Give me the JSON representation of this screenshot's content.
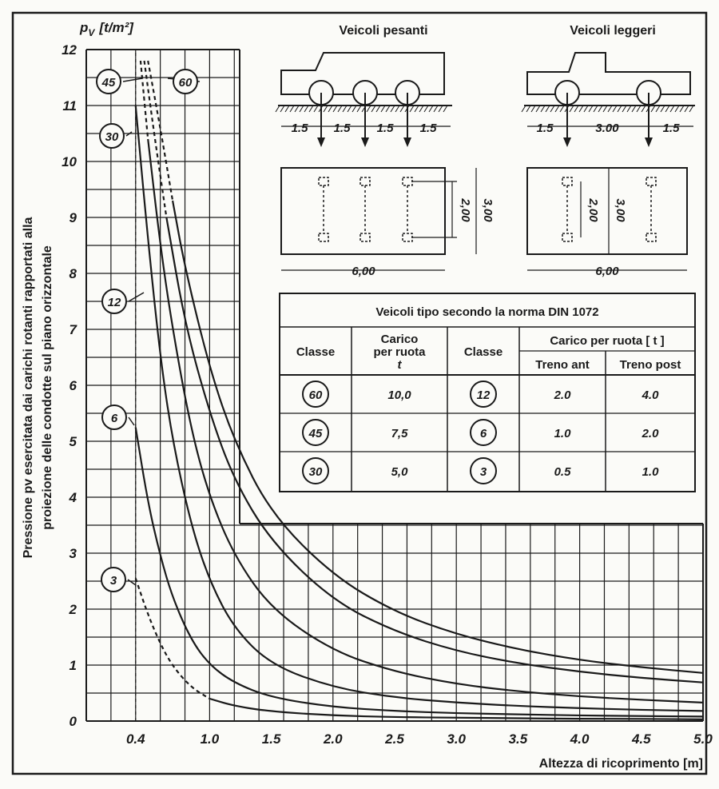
{
  "chart_data": {
    "type": "line",
    "y_unit_label": "p",
    "y_unit_sub": "V",
    "y_unit": "[t/m²]",
    "ylabel_line1": "Pressione pv esercitata dai carichi rotanti rapportati alla",
    "ylabel_line2": "proiezione delle condotte sul piano orizzontale",
    "xlabel": "Altezza di ricoprimento  [m]",
    "x_ticks": [
      "0.4",
      "1.0",
      "1.5",
      "2.0",
      "2.5",
      "3.0",
      "3.5",
      "4.0",
      "4.5",
      "5.0"
    ],
    "x_tick_values": [
      0.4,
      1.0,
      1.5,
      2.0,
      2.5,
      3.0,
      3.5,
      4.0,
      4.5,
      5.0
    ],
    "y_ticks": [
      "0",
      "1",
      "2",
      "3",
      "4",
      "5",
      "6",
      "7",
      "8",
      "9",
      "10",
      "11",
      "12"
    ],
    "xlim": [
      0.0,
      5.0
    ],
    "ylim": [
      0,
      12
    ],
    "grid": true,
    "series": [
      {
        "name": "60",
        "dashed_x": [
          0.5,
          0.75
        ],
        "x": [
          0.5,
          0.6,
          0.7,
          0.8,
          1.0,
          1.2,
          1.5,
          2.0,
          2.5,
          3.0,
          3.5,
          4.0,
          4.5,
          5.0
        ],
        "y": [
          11.8,
          10.6,
          9.3,
          8.1,
          6.3,
          5.0,
          3.7,
          2.6,
          1.95,
          1.55,
          1.28,
          1.09,
          0.96,
          0.86
        ]
      },
      {
        "name": "45",
        "dashed_x": [
          0.47,
          0.65
        ],
        "x": [
          0.47,
          0.55,
          0.65,
          0.8,
          1.0,
          1.2,
          1.5,
          2.0,
          2.5,
          3.0,
          3.5,
          4.0,
          4.5,
          5.0
        ],
        "y": [
          11.8,
          10.5,
          9.0,
          7.1,
          5.5,
          4.3,
          3.2,
          2.15,
          1.6,
          1.25,
          1.03,
          0.88,
          0.77,
          0.69
        ]
      },
      {
        "name": "30",
        "dashed_x": [
          0.44,
          0.55
        ],
        "x": [
          0.44,
          0.5,
          0.6,
          0.7,
          0.85,
          1.0,
          1.2,
          1.5,
          2.0,
          2.5,
          3.0,
          3.5,
          4.0,
          4.5,
          5.0
        ],
        "y": [
          11.8,
          10.4,
          8.5,
          7.0,
          5.2,
          4.0,
          2.95,
          2.0,
          1.25,
          0.88,
          0.66,
          0.53,
          0.44,
          0.38,
          0.33
        ]
      },
      {
        "name": "12",
        "dashed_x": [
          0.4,
          0.43
        ],
        "x": [
          0.4,
          0.5,
          0.6,
          0.7,
          0.85,
          1.0,
          1.2,
          1.5,
          2.0,
          2.5,
          3.0,
          3.5,
          4.0,
          4.5,
          5.0
        ],
        "y": [
          11.0,
          8.6,
          6.5,
          5.0,
          3.5,
          2.5,
          1.65,
          1.0,
          0.6,
          0.42,
          0.33,
          0.27,
          0.23,
          0.2,
          0.18
        ]
      },
      {
        "name": "6",
        "dashed_x": [
          0.4,
          0.4
        ],
        "x": [
          0.4,
          0.5,
          0.6,
          0.7,
          0.85,
          1.0,
          1.2,
          1.5,
          2.0,
          2.5,
          3.0,
          3.5,
          4.0,
          4.5,
          5.0
        ],
        "y": [
          5.25,
          3.9,
          2.95,
          2.2,
          1.45,
          1.0,
          0.68,
          0.42,
          0.25,
          0.18,
          0.14,
          0.12,
          0.1,
          0.09,
          0.08
        ]
      },
      {
        "name": "3",
        "dashed_x": [
          0.4,
          1.0
        ],
        "x": [
          0.4,
          0.5,
          0.6,
          0.7,
          0.85,
          1.0,
          1.2,
          1.5,
          2.0,
          2.5,
          3.0,
          3.5,
          4.0,
          4.5,
          5.0
        ],
        "y": [
          2.55,
          1.9,
          1.38,
          0.98,
          0.6,
          0.4,
          0.27,
          0.17,
          0.1,
          0.07,
          0.06,
          0.05,
          0.04,
          0.04,
          0.03
        ]
      }
    ],
    "curve_badges": [
      "45",
      "60",
      "30",
      "12",
      "6",
      "3"
    ]
  },
  "vehicles": {
    "heavy_title": "Veicoli pesanti",
    "light_title": "Veicoli leggeri",
    "heavy_spacing": [
      "1.5",
      "1.5",
      "1.5",
      "1.5"
    ],
    "light_spacing": [
      "1.5",
      "3.00",
      "1.5"
    ],
    "heavy_plan_length": "6,00",
    "heavy_plan_width": "2,00",
    "heavy_plan_depth": "3,00",
    "light_plan_length": "6,00",
    "light_plan_width": "2,00",
    "light_plan_depth": "3,00"
  },
  "table": {
    "title": "Veicoli tipo secondo la norma DIN 1072",
    "h_classe": "Classe",
    "h_carico_line1": "Carico",
    "h_carico_line2": "per ruota",
    "h_carico_unit": "t",
    "h_classe2": "Classe",
    "h_carico_ruota": "Carico per ruota [ t ]",
    "h_treno_ant": "Treno ant",
    "h_treno_post": "Treno post",
    "rows": [
      {
        "classe": "60",
        "carico": "10,0",
        "classe2": "12",
        "ant": "2.0",
        "post": "4.0"
      },
      {
        "classe": "45",
        "carico": "7,5",
        "classe2": "6",
        "ant": "1.0",
        "post": "2.0"
      },
      {
        "classe": "30",
        "carico": "5,0",
        "classe2": "3",
        "ant": "0.5",
        "post": "1.0"
      }
    ]
  }
}
